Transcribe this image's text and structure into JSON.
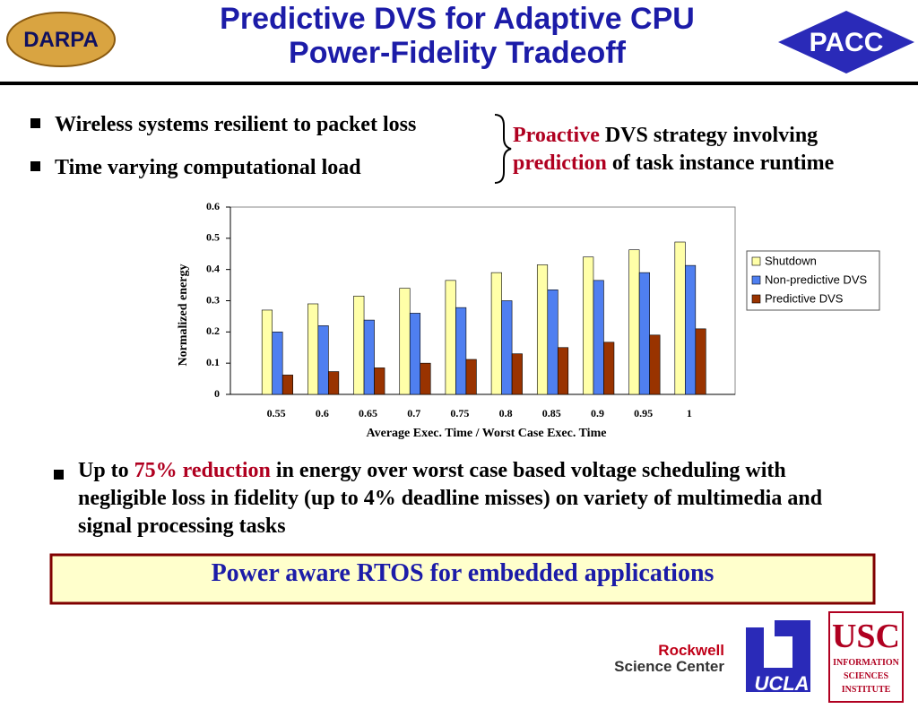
{
  "header": {
    "title_line1": "Predictive DVS  for Adaptive CPU",
    "title_line2": "Power-Fidelity Tradeoff",
    "left_logo": "DARPA",
    "right_logo": "PACC"
  },
  "bullets": [
    "Wireless systems resilient to packet loss",
    "Time varying computational load"
  ],
  "strategy": {
    "part1": "Proactive",
    "part2": " DVS strategy involving",
    "part3": "prediction",
    "part4": " of task instance runtime"
  },
  "chart_data": {
    "type": "bar",
    "categories": [
      "0.55",
      "0.6",
      "0.65",
      "0.7",
      "0.75",
      "0.8",
      "0.85",
      "0.9",
      "0.95",
      "1"
    ],
    "series": [
      {
        "name": "Shutdown",
        "color": "#ffffa8",
        "values": [
          0.27,
          0.29,
          0.315,
          0.34,
          0.365,
          0.39,
          0.415,
          0.44,
          0.463,
          0.488
        ]
      },
      {
        "name": "Non-predictive DVS",
        "color": "#4f7ff0",
        "values": [
          0.2,
          0.22,
          0.238,
          0.26,
          0.278,
          0.3,
          0.335,
          0.365,
          0.39,
          0.413
        ]
      },
      {
        "name": "Predictive DVS",
        "color": "#993300",
        "values": [
          0.062,
          0.073,
          0.085,
          0.1,
          0.112,
          0.13,
          0.15,
          0.167,
          0.19,
          0.21
        ]
      }
    ],
    "ylim": [
      0,
      0.6
    ],
    "yticks": [
      0,
      0.1,
      0.2,
      0.3,
      0.4,
      0.5,
      0.6
    ],
    "x_label": "Average Exec. Time / Worst Case Exec. Time",
    "y_label": "Normalized energy",
    "grid": false,
    "legend": "right"
  },
  "result": {
    "part1": "Up to ",
    "part2": "75% reduction",
    "part3": " in energy over worst case based voltage scheduling with negligible loss in fidelity (up to 4% deadline misses) on variety of multimedia and signal processing tasks"
  },
  "banner": "Power aware RTOS for embedded applications",
  "footer_logos": {
    "rockwell_1": "Rockwell",
    "rockwell_2": "Science Center",
    "ucla": "UCLA",
    "usc": "USC",
    "isi_1": "INFORMATION",
    "isi_2": "SCIENCES",
    "isi_3": "INSTITUTE"
  }
}
